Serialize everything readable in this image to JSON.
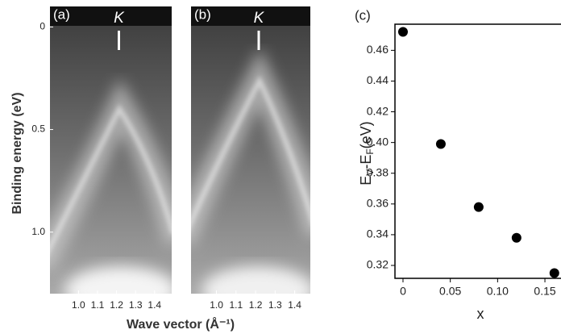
{
  "chart_data": [
    {
      "type": "image",
      "panel": "(a)",
      "marker": "K",
      "xlim": [
        0.85,
        1.49
      ],
      "xticks": [
        {
          "value": 1,
          "label": "1.0"
        },
        1.1,
        1.2,
        1.3,
        1.4
      ],
      "ylim": [
        1.3,
        -0.1
      ],
      "yticks": [
        0,
        0.5,
        {
          "value": 1,
          "label": "1.0"
        }
      ],
      "ylabel": "Binding energy (eV)",
      "xlabel": "Wave vector (Å⁻¹)"
    },
    {
      "type": "image",
      "panel": "(b)",
      "marker": "K",
      "xlim": [
        0.87,
        1.48
      ],
      "xticks": [
        {
          "value": 1,
          "label": "1.0"
        },
        1.1,
        1.2,
        1.3,
        1.4
      ],
      "ylim": [
        1.3,
        -0.1
      ]
    },
    {
      "type": "scatter",
      "panel": "(c)",
      "color": "#000",
      "x": [
        0,
        0.04,
        0.08,
        0.12,
        0.16
      ],
      "values": [
        0.472,
        0.399,
        0.358,
        0.338,
        0.315
      ],
      "xlim": [
        -0.0085,
        0.167
      ],
      "xticks": [
        0,
        0.05,
        {
          "value": 0.1,
          "label": "0.10"
        },
        0.15
      ],
      "ylim": [
        0.3116,
        0.477
      ],
      "yticks": [
        0.32,
        0.34,
        0.36,
        0.38,
        {
          "value": 0.4,
          "label": "0.40"
        },
        0.42,
        0.44,
        0.46
      ],
      "xlabel": "x",
      "ylabel": [
        "E",
        "V",
        "-E",
        "F",
        "(eV)"
      ]
    }
  ]
}
